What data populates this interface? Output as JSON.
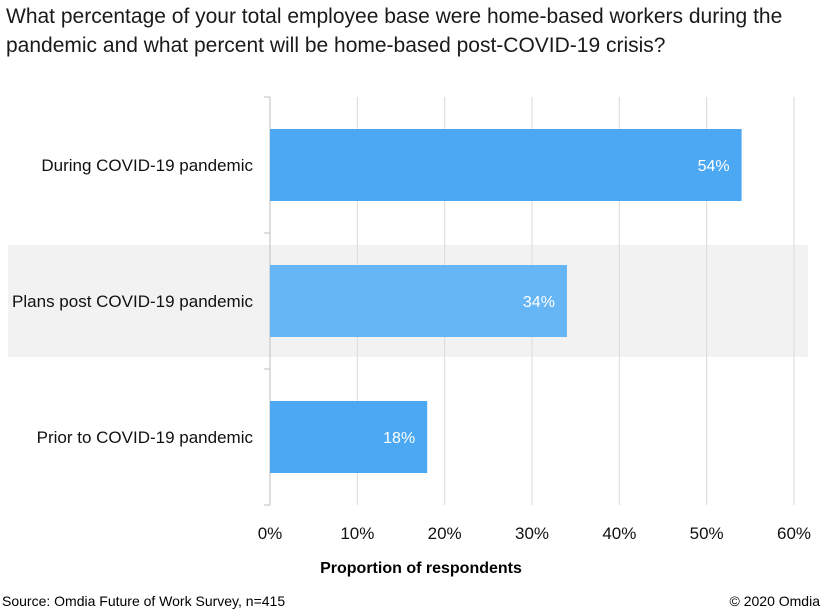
{
  "chart_data": {
    "type": "bar",
    "orientation": "horizontal",
    "title": "What percentage of your total employee base were home-based workers during the pandemic and what percent will be home-based post-COVID-19 crisis?",
    "categories": [
      "During COVID-19 pandemic",
      "Plans post COVID-19 pandemic",
      "Prior to COVID-19 pandemic"
    ],
    "values": [
      54,
      34,
      18
    ],
    "data_labels": [
      "54%",
      "34%",
      "18%"
    ],
    "highlighted_category": "Plans post COVID-19 pandemic",
    "xlabel": "Proportion of respondents",
    "ylabel": "",
    "xlim": [
      0,
      60
    ],
    "xticks": [
      0,
      10,
      20,
      30,
      40,
      50,
      60
    ],
    "xtick_labels": [
      "0%",
      "10%",
      "20%",
      "30%",
      "40%",
      "50%",
      "60%"
    ],
    "grid": true,
    "colors": {
      "bar": "#4ca8f2",
      "bar_highlight": "#66b5f4",
      "band": "#f2f2f2",
      "grid": "#d9d9d9"
    }
  },
  "footer": {
    "source": "Source: Omdia Future of Work Survey, n=415",
    "copyright": "© 2020 Omdia"
  }
}
